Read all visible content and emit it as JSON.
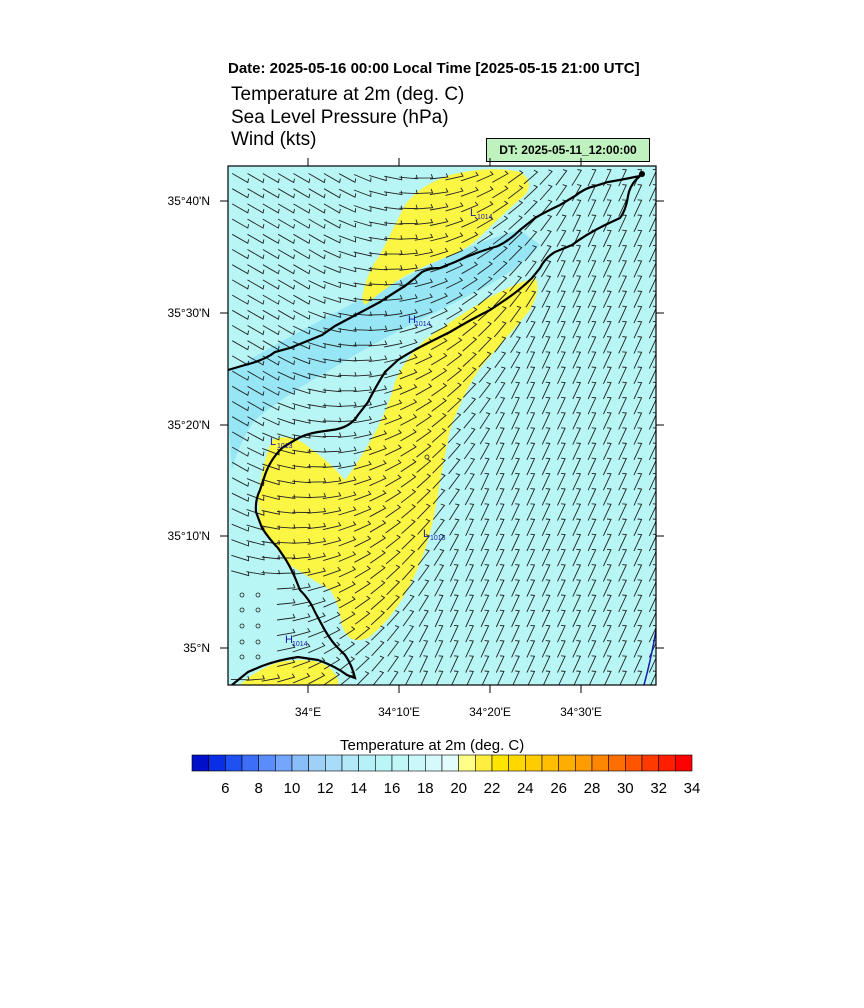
{
  "header": {
    "date_line": "Date: 2025-05-16  00:00 Local Time [2025-05-15  21:00 UTC]",
    "titles": [
      "Temperature at 2m   (deg. C)",
      "Sea Level Pressure   (hPa)",
      "Wind   (kts)"
    ],
    "dt_badge": "DT: 2025-05-11_12:00:00"
  },
  "map": {
    "lat_labels": [
      "35°40'N",
      "35°30'N",
      "35°20'N",
      "35°10'N",
      "35°N"
    ],
    "lon_labels": [
      "34°E",
      "34°10'E",
      "34°20'E",
      "34°30'E"
    ],
    "pressure_centers": [
      {
        "type": "L",
        "value": "1014"
      },
      {
        "type": "H",
        "value": "1014"
      },
      {
        "type": "L",
        "value": "1013"
      },
      {
        "type": "L",
        "value": "1013"
      },
      {
        "type": "H",
        "value": "1014"
      }
    ],
    "colors": {
      "sea_level_fill": "#b8f6f6",
      "cool_fill": "#96e6f6",
      "warm_fill": "#fbf544",
      "coast": "#000000",
      "marker": "#1a1aa8"
    }
  },
  "colorbar": {
    "title": "Temperature at 2m  (deg. C)",
    "labels": [
      "6",
      "8",
      "10",
      "12",
      "14",
      "16",
      "18",
      "20",
      "22",
      "24",
      "26",
      "28",
      "30",
      "32",
      "34"
    ],
    "colors": [
      "#0010c8",
      "#0a2ee6",
      "#1e50f2",
      "#3c6ef8",
      "#5a8cfa",
      "#74a6fb",
      "#8abef9",
      "#9ed0f8",
      "#a8dcf8",
      "#b2e8f8",
      "#b6f0f8",
      "#baf6f8",
      "#c0f8f8",
      "#caf8fa",
      "#d6fafc",
      "#e2fcfc",
      "#ffff88",
      "#ffee40",
      "#ffe400",
      "#ffd800",
      "#ffcc00",
      "#ffbe00",
      "#ffae00",
      "#ff9c00",
      "#ff8600",
      "#ff6e00",
      "#ff5400",
      "#ff3a00",
      "#ff1e00",
      "#ff0000"
    ]
  }
}
